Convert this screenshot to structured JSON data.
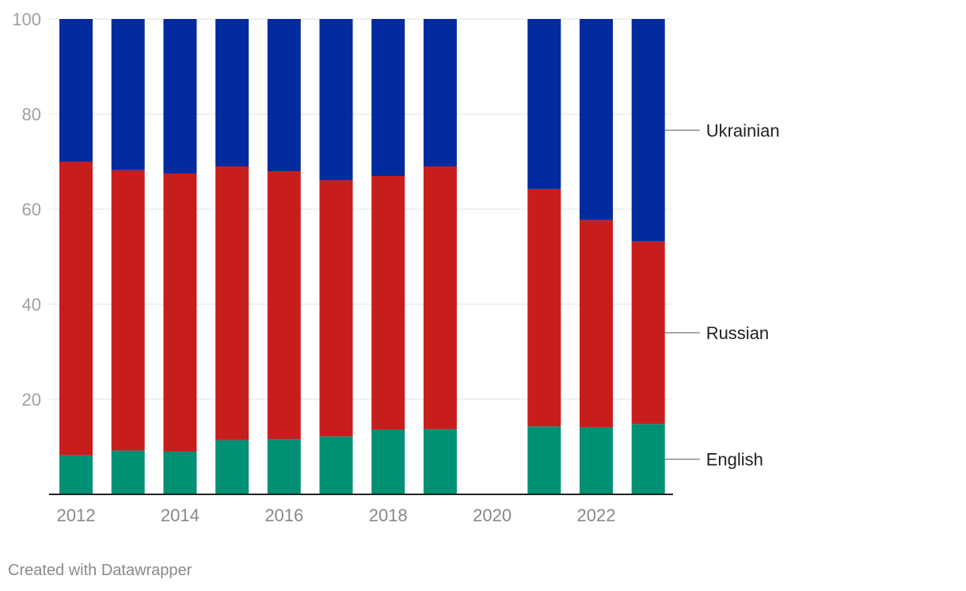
{
  "chart_data": {
    "type": "bar",
    "stacked": true,
    "categories": [
      "2012",
      "2013",
      "2014",
      "2015",
      "2016",
      "2017",
      "2018",
      "2019",
      "2020",
      "2021",
      "2022",
      "2023"
    ],
    "x_tick_labels": [
      "2012",
      "2014",
      "2016",
      "2018",
      "2020",
      "2022"
    ],
    "y_tick_labels": [
      "20",
      "40",
      "60",
      "80",
      "100"
    ],
    "ylim": [
      0,
      100
    ],
    "grid": true,
    "series": [
      {
        "name": "English",
        "color": "#009073",
        "values": [
          8.2,
          9.2,
          9.0,
          11.4,
          11.6,
          12.2,
          13.6,
          13.7,
          null,
          14.3,
          14.1,
          14.8
        ]
      },
      {
        "name": "Russian",
        "color": "#c71e1d",
        "values": [
          61.8,
          59.0,
          58.5,
          57.6,
          56.4,
          53.9,
          53.4,
          55.3,
          null,
          49.9,
          43.6,
          38.4
        ]
      },
      {
        "name": "Ukrainian",
        "color": "#002a9e",
        "values": [
          30.0,
          31.8,
          32.5,
          31.0,
          32.0,
          33.9,
          33.0,
          31.0,
          null,
          35.8,
          42.3,
          46.8
        ]
      }
    ],
    "legend_placement": "right, labels at end of last bar"
  },
  "footer": {
    "credit": "Created with Datawrapper"
  }
}
